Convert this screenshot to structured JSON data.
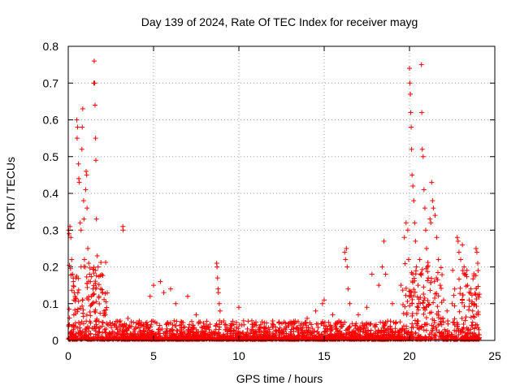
{
  "chart_data": {
    "type": "scatter",
    "title": "Day 139 of 2024, Rate Of TEC Index for receiver mayg",
    "xlabel": "GPS time / hours",
    "ylabel": "ROTI / TECUs",
    "xlim": [
      0,
      25
    ],
    "ylim": [
      0,
      0.8
    ],
    "xticks": [
      "0",
      "5",
      "10",
      "15",
      "20",
      "25"
    ],
    "yticks": [
      "0",
      "0.1",
      "0.2",
      "0.3",
      "0.4",
      "0.5",
      "0.6",
      "0.7",
      "0.8"
    ],
    "grid": true,
    "marker": "plus",
    "color": "#ff0000",
    "series": [
      {
        "values": [
          [
            0.02,
            0.3
          ],
          [
            0.05,
            0.29
          ],
          [
            0.1,
            0.31
          ],
          [
            0.15,
            0.28
          ],
          [
            0.2,
            0.22
          ],
          [
            0.25,
            0.18
          ],
          [
            0.3,
            0.16
          ],
          [
            0.35,
            0.13
          ],
          [
            0.4,
            0.12
          ],
          [
            0.45,
            0.17
          ],
          [
            0.5,
            0.6
          ],
          [
            0.52,
            0.55
          ],
          [
            0.55,
            0.58
          ],
          [
            0.6,
            0.48
          ],
          [
            0.62,
            0.44
          ],
          [
            0.65,
            0.43
          ],
          [
            0.7,
            0.32
          ],
          [
            0.75,
            0.3
          ],
          [
            0.8,
            0.52
          ],
          [
            0.82,
            0.58
          ],
          [
            0.85,
            0.63
          ],
          [
            0.9,
            0.38
          ],
          [
            0.92,
            0.33
          ],
          [
            0.95,
            0.22
          ],
          [
            1.0,
            0.2
          ],
          [
            1.02,
            0.41
          ],
          [
            1.05,
            0.46
          ],
          [
            1.08,
            0.45
          ],
          [
            1.1,
            0.36
          ],
          [
            1.15,
            0.25
          ],
          [
            1.2,
            0.21
          ],
          [
            1.25,
            0.18
          ],
          [
            1.3,
            0.16
          ],
          [
            1.35,
            0.12
          ],
          [
            1.4,
            0.1
          ],
          [
            1.45,
            0.14
          ],
          [
            1.5,
            0.7
          ],
          [
            1.52,
            0.76
          ],
          [
            1.55,
            0.7
          ],
          [
            1.57,
            0.64
          ],
          [
            1.6,
            0.55
          ],
          [
            1.62,
            0.49
          ],
          [
            1.65,
            0.33
          ],
          [
            1.7,
            0.23
          ],
          [
            1.75,
            0.2
          ],
          [
            1.8,
            0.12
          ],
          [
            1.9,
            0.14
          ],
          [
            2.0,
            0.13
          ],
          [
            2.1,
            0.08
          ],
          [
            3.2,
            0.31
          ],
          [
            3.22,
            0.3
          ],
          [
            3.5,
            0.06
          ],
          [
            4.8,
            0.12
          ],
          [
            5.0,
            0.15
          ],
          [
            5.4,
            0.16
          ],
          [
            5.6,
            0.13
          ],
          [
            6.0,
            0.14
          ],
          [
            6.3,
            0.1
          ],
          [
            7.0,
            0.12
          ],
          [
            7.5,
            0.07
          ],
          [
            8.7,
            0.21
          ],
          [
            8.72,
            0.2
          ],
          [
            8.75,
            0.17
          ],
          [
            8.78,
            0.14
          ],
          [
            8.8,
            0.13
          ],
          [
            8.85,
            0.1
          ],
          [
            8.9,
            0.08
          ],
          [
            9.5,
            0.04
          ],
          [
            10.0,
            0.09
          ],
          [
            11.0,
            0.05
          ],
          [
            12.0,
            0.04
          ],
          [
            13.0,
            0.05
          ],
          [
            14.0,
            0.06
          ],
          [
            14.5,
            0.08
          ],
          [
            14.9,
            0.1
          ],
          [
            15.0,
            0.11
          ],
          [
            15.5,
            0.07
          ],
          [
            16.0,
            0.05
          ],
          [
            16.2,
            0.24
          ],
          [
            16.25,
            0.22
          ],
          [
            16.3,
            0.25
          ],
          [
            16.35,
            0.2
          ],
          [
            16.4,
            0.14
          ],
          [
            16.5,
            0.1
          ],
          [
            17.0,
            0.07
          ],
          [
            17.5,
            0.09
          ],
          [
            17.8,
            0.18
          ],
          [
            18.2,
            0.15
          ],
          [
            18.4,
            0.2
          ],
          [
            18.5,
            0.27
          ],
          [
            18.6,
            0.18
          ],
          [
            19.0,
            0.1
          ],
          [
            19.5,
            0.15
          ],
          [
            19.7,
            0.28
          ],
          [
            19.8,
            0.32
          ],
          [
            19.9,
            0.3
          ],
          [
            19.95,
            0.22
          ],
          [
            20.0,
            0.74
          ],
          [
            20.02,
            0.7
          ],
          [
            20.05,
            0.67
          ],
          [
            20.07,
            0.62
          ],
          [
            20.1,
            0.58
          ],
          [
            20.12,
            0.52
          ],
          [
            20.15,
            0.45
          ],
          [
            20.2,
            0.42
          ],
          [
            20.25,
            0.38
          ],
          [
            20.3,
            0.32
          ],
          [
            20.35,
            0.27
          ],
          [
            20.4,
            0.2
          ],
          [
            20.5,
            0.15
          ],
          [
            20.6,
            0.22
          ],
          [
            20.65,
            0.18
          ],
          [
            20.7,
            0.75
          ],
          [
            20.72,
            0.62
          ],
          [
            20.75,
            0.52
          ],
          [
            20.8,
            0.5
          ],
          [
            20.85,
            0.41
          ],
          [
            20.9,
            0.36
          ],
          [
            20.95,
            0.3
          ],
          [
            21.0,
            0.25
          ],
          [
            21.05,
            0.2
          ],
          [
            21.1,
            0.17
          ],
          [
            21.2,
            0.33
          ],
          [
            21.25,
            0.32
          ],
          [
            21.3,
            0.43
          ],
          [
            21.35,
            0.38
          ],
          [
            21.4,
            0.36
          ],
          [
            21.5,
            0.34
          ],
          [
            21.6,
            0.28
          ],
          [
            21.7,
            0.22
          ],
          [
            21.8,
            0.15
          ],
          [
            22.0,
            0.11
          ],
          [
            22.2,
            0.08
          ],
          [
            22.5,
            0.1
          ],
          [
            22.8,
            0.28
          ],
          [
            22.85,
            0.27
          ],
          [
            22.9,
            0.24
          ],
          [
            23.0,
            0.22
          ],
          [
            23.1,
            0.26
          ],
          [
            23.2,
            0.2
          ],
          [
            23.3,
            0.18
          ],
          [
            23.4,
            0.15
          ],
          [
            23.5,
            0.11
          ],
          [
            23.6,
            0.14
          ],
          [
            23.7,
            0.08
          ],
          [
            23.8,
            0.1
          ],
          [
            23.9,
            0.25
          ],
          [
            23.95,
            0.24
          ],
          [
            24.0,
            0.21
          ],
          [
            24.02,
            0.19
          ]
        ]
      }
    ]
  }
}
